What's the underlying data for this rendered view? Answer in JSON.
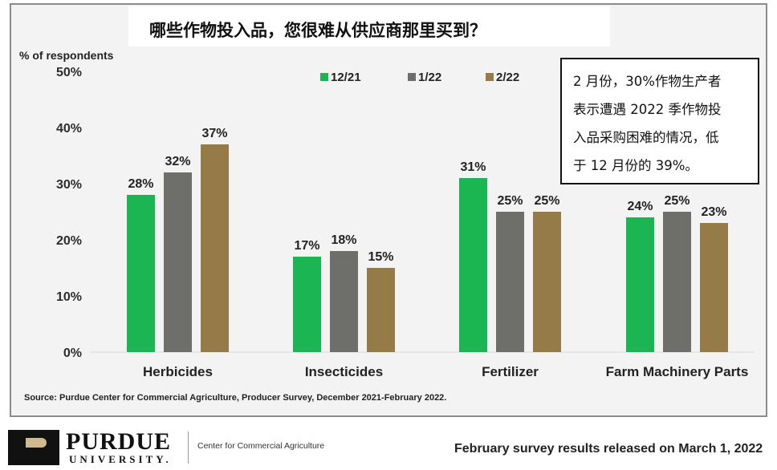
{
  "header": {
    "title": "哪些作物投入品，您很难从供应商那里买到？"
  },
  "note": {
    "lines": [
      "2 月份，30%作物生产者",
      "表示遭遇 2022 季作物投",
      "入品采购困难的情况，低",
      "于 12 月份的 39%。"
    ]
  },
  "chart_data": {
    "type": "bar",
    "title": "哪些作物投入品，您很难从供应商那里买到？",
    "ylabel": "% of respondents",
    "xlabel": "",
    "ylim": [
      0,
      50
    ],
    "yticks": [
      "0%",
      "10%",
      "20%",
      "30%",
      "40%",
      "50%"
    ],
    "categories": [
      "Herbicides",
      "Insecticides",
      "Fertilizer",
      "Farm Machinery Parts"
    ],
    "series": [
      {
        "name": "12/21",
        "color": "#1bb554",
        "values": [
          28,
          17,
          31,
          24
        ]
      },
      {
        "name": "1/22",
        "color": "#6e6e6a",
        "values": [
          32,
          18,
          25,
          25
        ]
      },
      {
        "name": "2/22",
        "color": "#957b48",
        "values": [
          37,
          15,
          25,
          23
        ]
      }
    ],
    "legend_position": "top",
    "grid": false
  },
  "source": "Source:  Purdue Center for Commercial Agriculture, Producer Survey, December 2021-February 2022.",
  "footer": {
    "logo_name": "PURDUE",
    "logo_sub": "UNIVERSITY.",
    "center_name": "Center for Commercial Agriculture",
    "release_text": "February survey results released on March 1, 2022"
  }
}
